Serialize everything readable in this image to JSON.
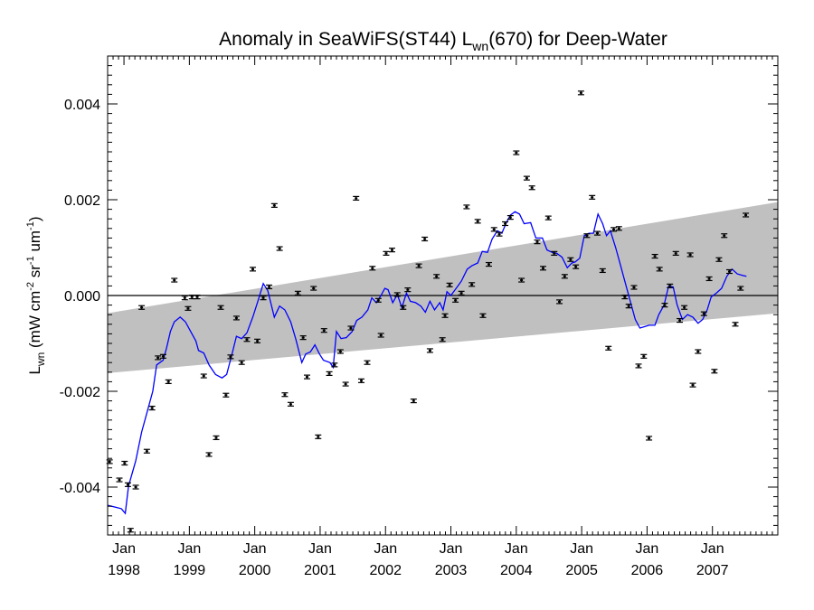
{
  "chart_data": {
    "type": "scatter",
    "title": "Anomaly in SeaWiFS(ST44) L",
    "title_sub": "wn",
    "title_rest": "(670) for Deep-Water",
    "ylabel": {
      "main": "L",
      "sub": "wn",
      "open": " (mW cm",
      "sup1": "-2",
      "mid": " sr",
      "sup2": "-1",
      "mid2": " um",
      "sup3": "-1",
      "close": ")"
    },
    "xlim": [
      1997.75,
      2008.0
    ],
    "ylim": [
      -0.005,
      0.005
    ],
    "yticks": [
      {
        "value": -0.004,
        "label": "-0.004"
      },
      {
        "value": -0.002,
        "label": "-0.002"
      },
      {
        "value": 0.0,
        "label": "0.000"
      },
      {
        "value": 0.002,
        "label": "0.002"
      },
      {
        "value": 0.004,
        "label": "0.004"
      }
    ],
    "xticks": [
      {
        "value": 1998.0,
        "month": "Jan",
        "year": "1998"
      },
      {
        "value": 1999.0,
        "month": "Jan",
        "year": "1999"
      },
      {
        "value": 2000.0,
        "month": "Jan",
        "year": "2000"
      },
      {
        "value": 2001.0,
        "month": "Jan",
        "year": "2001"
      },
      {
        "value": 2002.0,
        "month": "Jan",
        "year": "2002"
      },
      {
        "value": 2003.0,
        "month": "Jan",
        "year": "2003"
      },
      {
        "value": 2004.0,
        "month": "Jan",
        "year": "2004"
      },
      {
        "value": 2005.0,
        "month": "Jan",
        "year": "2005"
      },
      {
        "value": 2006.0,
        "month": "Jan",
        "year": "2006"
      },
      {
        "value": 2007.0,
        "month": "Jan",
        "year": "2007"
      }
    ],
    "zero_line": 0.0,
    "confidence_band": {
      "color": "#c0c0c0",
      "x": [
        1997.75,
        2008.0
      ],
      "upper": [
        -0.00037,
        0.00195
      ],
      "lower": [
        -0.00162,
        -0.00037
      ]
    },
    "points_color": "#000000",
    "line_color": "#0000ff",
    "points": [
      {
        "x": 1997.78,
        "y": -0.00347
      },
      {
        "x": 1997.93,
        "y": -0.00385
      },
      {
        "x": 1998.01,
        "y": -0.0035
      },
      {
        "x": 1998.06,
        "y": -0.00395
      },
      {
        "x": 1998.1,
        "y": -0.0049
      },
      {
        "x": 1998.18,
        "y": -0.004
      },
      {
        "x": 1998.27,
        "y": -0.00025
      },
      {
        "x": 1998.35,
        "y": -0.00325
      },
      {
        "x": 1998.43,
        "y": -0.00235
      },
      {
        "x": 1998.52,
        "y": -0.0013
      },
      {
        "x": 1998.6,
        "y": -0.00127
      },
      {
        "x": 1998.68,
        "y": -0.0018
      },
      {
        "x": 1998.77,
        "y": 0.00032
      },
      {
        "x": 1998.93,
        "y": -5e-05
      },
      {
        "x": 1998.98,
        "y": -0.00027
      },
      {
        "x": 1999.04,
        "y": -3e-05
      },
      {
        "x": 1999.12,
        "y": -3e-05
      },
      {
        "x": 1999.22,
        "y": -0.00168
      },
      {
        "x": 1999.3,
        "y": -0.00332
      },
      {
        "x": 1999.41,
        "y": -0.00297
      },
      {
        "x": 1999.48,
        "y": -0.00025
      },
      {
        "x": 1999.56,
        "y": -0.00208
      },
      {
        "x": 1999.63,
        "y": -0.00128
      },
      {
        "x": 1999.72,
        "y": -0.00047
      },
      {
        "x": 1999.8,
        "y": -0.0014
      },
      {
        "x": 1999.88,
        "y": -0.00092
      },
      {
        "x": 1999.97,
        "y": 0.00055
      },
      {
        "x": 2000.04,
        "y": -0.00095
      },
      {
        "x": 2000.13,
        "y": -5e-05
      },
      {
        "x": 2000.22,
        "y": 0.00018
      },
      {
        "x": 2000.3,
        "y": 0.00188
      },
      {
        "x": 2000.38,
        "y": 0.00098
      },
      {
        "x": 2000.46,
        "y": -0.00207
      },
      {
        "x": 2000.55,
        "y": -0.00227
      },
      {
        "x": 2000.66,
        "y": 5e-05
      },
      {
        "x": 2000.74,
        "y": -0.00088
      },
      {
        "x": 2000.8,
        "y": -0.0017
      },
      {
        "x": 2000.9,
        "y": 0.00015
      },
      {
        "x": 2000.97,
        "y": -0.00295
      },
      {
        "x": 2001.06,
        "y": -0.00073
      },
      {
        "x": 2001.14,
        "y": -0.00163
      },
      {
        "x": 2001.22,
        "y": -0.00145
      },
      {
        "x": 2001.31,
        "y": -0.00117
      },
      {
        "x": 2001.39,
        "y": -0.00185
      },
      {
        "x": 2001.47,
        "y": -0.00068
      },
      {
        "x": 2001.55,
        "y": 0.00203
      },
      {
        "x": 2001.63,
        "y": -0.00178
      },
      {
        "x": 2001.72,
        "y": -0.0014
      },
      {
        "x": 2001.8,
        "y": 0.00057
      },
      {
        "x": 2001.89,
        "y": -0.0001
      },
      {
        "x": 2001.93,
        "y": -0.00083
      },
      {
        "x": 2002.01,
        "y": 0.00088
      },
      {
        "x": 2002.1,
        "y": 0.00095
      },
      {
        "x": 2002.18,
        "y": 2e-05
      },
      {
        "x": 2002.27,
        "y": -0.00025
      },
      {
        "x": 2002.34,
        "y": 0.00012
      },
      {
        "x": 2002.43,
        "y": -0.0022
      },
      {
        "x": 2002.51,
        "y": 0.00062
      },
      {
        "x": 2002.6,
        "y": 0.00118
      },
      {
        "x": 2002.68,
        "y": -0.00115
      },
      {
        "x": 2002.78,
        "y": 0.0004
      },
      {
        "x": 2002.87,
        "y": -0.00092
      },
      {
        "x": 2002.91,
        "y": -0.00042
      },
      {
        "x": 2002.98,
        "y": 0.00022
      },
      {
        "x": 2003.07,
        "y": -0.0001
      },
      {
        "x": 2003.16,
        "y": 5e-05
      },
      {
        "x": 2003.24,
        "y": 0.00185
      },
      {
        "x": 2003.32,
        "y": 0.00023
      },
      {
        "x": 2003.41,
        "y": 0.00155
      },
      {
        "x": 2003.49,
        "y": -0.00042
      },
      {
        "x": 2003.58,
        "y": 0.00065
      },
      {
        "x": 2003.66,
        "y": 0.00138
      },
      {
        "x": 2003.74,
        "y": 0.00128
      },
      {
        "x": 2003.83,
        "y": 0.0015
      },
      {
        "x": 2003.91,
        "y": 0.00163
      },
      {
        "x": 2004.0,
        "y": 0.00298
      },
      {
        "x": 2004.08,
        "y": 0.00032
      },
      {
        "x": 2004.16,
        "y": 0.00245
      },
      {
        "x": 2004.24,
        "y": 0.00225
      },
      {
        "x": 2004.32,
        "y": 0.00112
      },
      {
        "x": 2004.41,
        "y": 0.00057
      },
      {
        "x": 2004.49,
        "y": 0.00162
      },
      {
        "x": 2004.58,
        "y": 0.00088
      },
      {
        "x": 2004.66,
        "y": -0.00013
      },
      {
        "x": 2004.74,
        "y": 0.0004
      },
      {
        "x": 2004.83,
        "y": 0.00075
      },
      {
        "x": 2004.91,
        "y": 0.0006
      },
      {
        "x": 2004.99,
        "y": 0.00423
      },
      {
        "x": 2005.08,
        "y": 0.00125
      },
      {
        "x": 2005.16,
        "y": 0.00205
      },
      {
        "x": 2005.24,
        "y": 0.0013
      },
      {
        "x": 2005.32,
        "y": 0.00052
      },
      {
        "x": 2005.41,
        "y": -0.0011
      },
      {
        "x": 2005.49,
        "y": 0.00138
      },
      {
        "x": 2005.57,
        "y": 0.0014
      },
      {
        "x": 2005.66,
        "y": -3e-05
      },
      {
        "x": 2005.72,
        "y": -0.00022
      },
      {
        "x": 2005.8,
        "y": 0.00017
      },
      {
        "x": 2005.87,
        "y": -0.00147
      },
      {
        "x": 2005.95,
        "y": -0.00127
      },
      {
        "x": 2006.03,
        "y": -0.00298
      },
      {
        "x": 2006.12,
        "y": 0.00082
      },
      {
        "x": 2006.19,
        "y": 0.00055
      },
      {
        "x": 2006.27,
        "y": -0.0002
      },
      {
        "x": 2006.35,
        "y": 0.0002
      },
      {
        "x": 2006.44,
        "y": 0.00088
      },
      {
        "x": 2006.5,
        "y": -0.00052
      },
      {
        "x": 2006.57,
        "y": -0.00025
      },
      {
        "x": 2006.66,
        "y": 0.00085
      },
      {
        "x": 2006.7,
        "y": -0.00187
      },
      {
        "x": 2006.78,
        "y": -0.00117
      },
      {
        "x": 2006.87,
        "y": -0.00038
      },
      {
        "x": 2006.95,
        "y": 0.00035
      },
      {
        "x": 2007.03,
        "y": -0.00158
      },
      {
        "x": 2007.1,
        "y": 0.00075
      },
      {
        "x": 2007.18,
        "y": 0.00125
      },
      {
        "x": 2007.26,
        "y": 0.0005
      },
      {
        "x": 2007.35,
        "y": -0.0006
      },
      {
        "x": 2007.43,
        "y": 0.00015
      },
      {
        "x": 2007.51,
        "y": 0.00168
      }
    ],
    "running_mean": [
      {
        "x": 1997.75,
        "y": -0.00438
      },
      {
        "x": 1997.96,
        "y": -0.00445
      },
      {
        "x": 1998.02,
        "y": -0.00455
      },
      {
        "x": 1998.07,
        "y": -0.00398
      },
      {
        "x": 1998.18,
        "y": -0.00345
      },
      {
        "x": 1998.27,
        "y": -0.00285
      },
      {
        "x": 1998.35,
        "y": -0.00245
      },
      {
        "x": 1998.44,
        "y": -0.002
      },
      {
        "x": 1998.5,
        "y": -0.00145
      },
      {
        "x": 1998.6,
        "y": -0.00135
      },
      {
        "x": 1998.65,
        "y": -0.0011
      },
      {
        "x": 1998.71,
        "y": -0.00075
      },
      {
        "x": 1998.77,
        "y": -0.00055
      },
      {
        "x": 1998.86,
        "y": -0.00045
      },
      {
        "x": 1998.94,
        "y": -0.00055
      },
      {
        "x": 1999.02,
        "y": -0.00075
      },
      {
        "x": 1999.1,
        "y": -0.00095
      },
      {
        "x": 1999.14,
        "y": -0.00115
      },
      {
        "x": 1999.22,
        "y": -0.0012
      },
      {
        "x": 1999.3,
        "y": -0.00145
      },
      {
        "x": 1999.4,
        "y": -0.00165
      },
      {
        "x": 1999.5,
        "y": -0.00172
      },
      {
        "x": 1999.57,
        "y": -0.00165
      },
      {
        "x": 1999.66,
        "y": -0.00118
      },
      {
        "x": 1999.72,
        "y": -0.00085
      },
      {
        "x": 1999.8,
        "y": -0.0009
      },
      {
        "x": 1999.88,
        "y": -0.00078
      },
      {
        "x": 1999.97,
        "y": -0.00045
      },
      {
        "x": 2000.04,
        "y": -0.00015
      },
      {
        "x": 2000.13,
        "y": 0.00025
      },
      {
        "x": 2000.2,
        "y": 0.0001
      },
      {
        "x": 2000.3,
        "y": -0.00045
      },
      {
        "x": 2000.38,
        "y": -0.00022
      },
      {
        "x": 2000.46,
        "y": -0.0003
      },
      {
        "x": 2000.55,
        "y": -0.00055
      },
      {
        "x": 2000.63,
        "y": -0.00092
      },
      {
        "x": 2000.72,
        "y": -0.0014
      },
      {
        "x": 2000.78,
        "y": -0.00122
      },
      {
        "x": 2000.85,
        "y": -0.00118
      },
      {
        "x": 2000.92,
        "y": -0.00103
      },
      {
        "x": 2000.99,
        "y": -0.00122
      },
      {
        "x": 2001.05,
        "y": -0.00135
      },
      {
        "x": 2001.15,
        "y": -0.0014
      },
      {
        "x": 2001.2,
        "y": -0.0015
      },
      {
        "x": 2001.25,
        "y": -0.00075
      },
      {
        "x": 2001.32,
        "y": -0.0009
      },
      {
        "x": 2001.4,
        "y": -0.00088
      },
      {
        "x": 2001.49,
        "y": -0.00075
      },
      {
        "x": 2001.56,
        "y": -0.00052
      },
      {
        "x": 2001.64,
        "y": -0.00045
      },
      {
        "x": 2001.73,
        "y": -0.0003
      },
      {
        "x": 2001.79,
        "y": -5e-05
      },
      {
        "x": 2001.86,
        "y": -0.00015
      },
      {
        "x": 2001.93,
        "y": 0.0
      },
      {
        "x": 2001.99,
        "y": 0.00015
      },
      {
        "x": 2002.04,
        "y": 0.00012
      },
      {
        "x": 2002.11,
        "y": -0.00015
      },
      {
        "x": 2002.18,
        "y": 2e-05
      },
      {
        "x": 2002.25,
        "y": -0.00025
      },
      {
        "x": 2002.32,
        "y": 5e-05
      },
      {
        "x": 2002.38,
        "y": -0.00012
      },
      {
        "x": 2002.46,
        "y": -0.00015
      },
      {
        "x": 2002.54,
        "y": -0.00022
      },
      {
        "x": 2002.61,
        "y": -0.00035
      },
      {
        "x": 2002.68,
        "y": -0.00012
      },
      {
        "x": 2002.75,
        "y": -0.0003
      },
      {
        "x": 2002.83,
        "y": -0.00015
      },
      {
        "x": 2002.88,
        "y": -0.0003
      },
      {
        "x": 2002.94,
        "y": 8e-05
      },
      {
        "x": 2003.0,
        "y": 0.0
      },
      {
        "x": 2003.08,
        "y": 0.00015
      },
      {
        "x": 2003.16,
        "y": 0.0003
      },
      {
        "x": 2003.25,
        "y": 0.00055
      },
      {
        "x": 2003.32,
        "y": 0.00062
      },
      {
        "x": 2003.41,
        "y": 0.00068
      },
      {
        "x": 2003.48,
        "y": 0.00092
      },
      {
        "x": 2003.56,
        "y": 0.0009
      },
      {
        "x": 2003.63,
        "y": 0.00118
      },
      {
        "x": 2003.71,
        "y": 0.00135
      },
      {
        "x": 2003.78,
        "y": 0.0013
      },
      {
        "x": 2003.84,
        "y": 0.0015
      },
      {
        "x": 2003.91,
        "y": 0.00168
      },
      {
        "x": 2003.98,
        "y": 0.00175
      },
      {
        "x": 2004.05,
        "y": 0.0017
      },
      {
        "x": 2004.12,
        "y": 0.0015
      },
      {
        "x": 2004.22,
        "y": 0.00152
      },
      {
        "x": 2004.3,
        "y": 0.0012
      },
      {
        "x": 2004.4,
        "y": 0.0012
      },
      {
        "x": 2004.47,
        "y": 0.00095
      },
      {
        "x": 2004.55,
        "y": 0.0009
      },
      {
        "x": 2004.62,
        "y": 0.00088
      },
      {
        "x": 2004.7,
        "y": 0.0008
      },
      {
        "x": 2004.78,
        "y": 0.00058
      },
      {
        "x": 2004.85,
        "y": 0.00068
      },
      {
        "x": 2004.9,
        "y": 0.0007
      },
      {
        "x": 2004.97,
        "y": 0.00078
      },
      {
        "x": 2005.04,
        "y": 0.00125
      },
      {
        "x": 2005.11,
        "y": 0.0013
      },
      {
        "x": 2005.18,
        "y": 0.0013
      },
      {
        "x": 2005.25,
        "y": 0.0017
      },
      {
        "x": 2005.32,
        "y": 0.0015
      },
      {
        "x": 2005.38,
        "y": 0.00125
      },
      {
        "x": 2005.44,
        "y": 0.00135
      },
      {
        "x": 2005.52,
        "y": 0.001
      },
      {
        "x": 2005.58,
        "y": 0.0007
      },
      {
        "x": 2005.66,
        "y": 0.0003
      },
      {
        "x": 2005.74,
        "y": -0.0001
      },
      {
        "x": 2005.82,
        "y": -0.0005
      },
      {
        "x": 2005.89,
        "y": -0.00068
      },
      {
        "x": 2005.96,
        "y": -0.00065
      },
      {
        "x": 2006.03,
        "y": -0.00062
      },
      {
        "x": 2006.12,
        "y": -0.00062
      },
      {
        "x": 2006.18,
        "y": -0.0004
      },
      {
        "x": 2006.26,
        "y": -0.0002
      },
      {
        "x": 2006.33,
        "y": 0.0002
      },
      {
        "x": 2006.4,
        "y": 0.00018
      },
      {
        "x": 2006.46,
        "y": -0.0002
      },
      {
        "x": 2006.54,
        "y": -0.0005
      },
      {
        "x": 2006.62,
        "y": -0.0004
      },
      {
        "x": 2006.7,
        "y": -0.00045
      },
      {
        "x": 2006.78,
        "y": -0.00058
      },
      {
        "x": 2006.85,
        "y": -0.0005
      },
      {
        "x": 2006.92,
        "y": -0.0003
      },
      {
        "x": 2006.98,
        "y": -3e-05
      },
      {
        "x": 2007.06,
        "y": 5e-05
      },
      {
        "x": 2007.14,
        "y": 0.00015
      },
      {
        "x": 2007.22,
        "y": 0.0004
      },
      {
        "x": 2007.3,
        "y": 0.00055
      },
      {
        "x": 2007.38,
        "y": 0.00045
      },
      {
        "x": 2007.46,
        "y": 0.00042
      },
      {
        "x": 2007.52,
        "y": 0.0004
      }
    ]
  }
}
